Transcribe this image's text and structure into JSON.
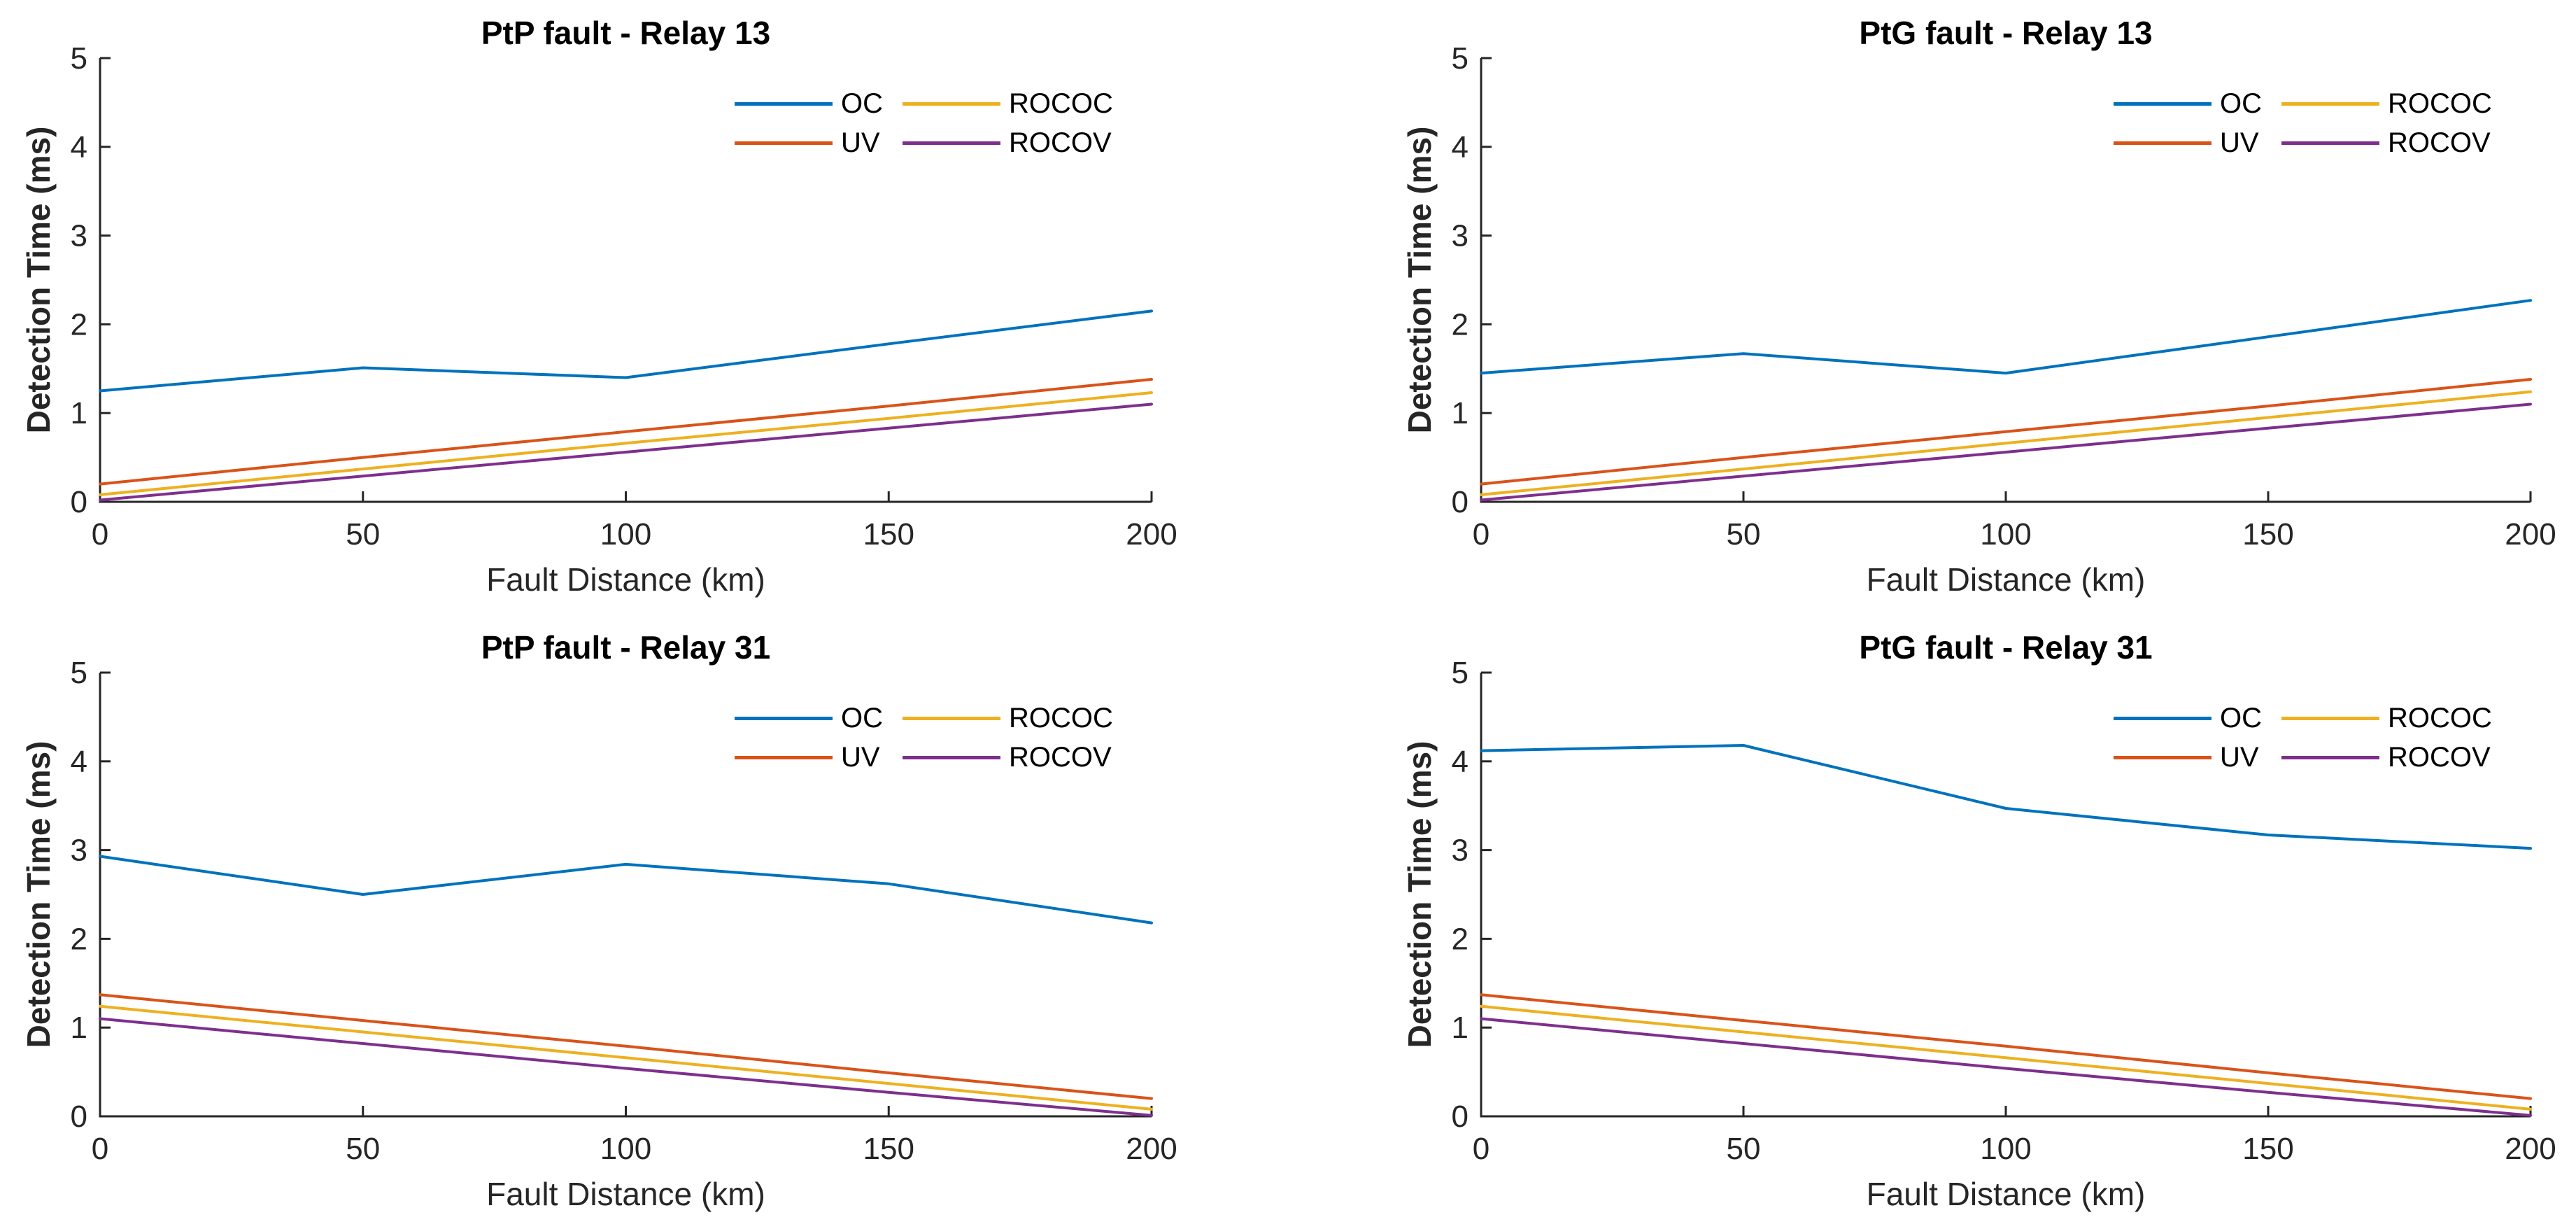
{
  "figure": {
    "background": "#ffffff",
    "axis_color": "#262626",
    "text_color": "#000000"
  },
  "chart_data": [
    {
      "type": "line",
      "title": "PtP fault - Relay 13",
      "xlabel": "Fault Distance (km)",
      "ylabel": "Detection Time (ms)",
      "x": [
        0,
        50,
        100,
        150,
        200
      ],
      "xlim": [
        0,
        200
      ],
      "ylim": [
        0,
        5
      ],
      "xticks": [
        0,
        50,
        100,
        150,
        200
      ],
      "yticks": [
        0,
        1,
        2,
        3,
        4,
        5
      ],
      "grid": false,
      "legend_position": "top-right",
      "series": [
        {
          "name": "OC",
          "color": "#0072BD",
          "values": [
            1.25,
            1.51,
            1.4,
            1.78,
            2.15
          ]
        },
        {
          "name": "UV",
          "color": "#D95319",
          "values": [
            0.2,
            0.5,
            0.79,
            1.08,
            1.38
          ]
        },
        {
          "name": "ROCOC",
          "color": "#EDB120",
          "values": [
            0.08,
            0.37,
            0.66,
            0.94,
            1.23
          ]
        },
        {
          "name": "ROCOV",
          "color": "#7E2F8E",
          "values": [
            0.02,
            0.29,
            0.56,
            0.83,
            1.1
          ]
        }
      ]
    },
    {
      "type": "line",
      "title": "PtG fault - Relay 13",
      "xlabel": "Fault Distance (km)",
      "ylabel": "Detection Time (ms)",
      "x": [
        0,
        50,
        100,
        150,
        200
      ],
      "xlim": [
        0,
        200
      ],
      "ylim": [
        0,
        5
      ],
      "xticks": [
        0,
        50,
        100,
        150,
        200
      ],
      "yticks": [
        0,
        1,
        2,
        3,
        4,
        5
      ],
      "grid": false,
      "legend_position": "top-right",
      "series": [
        {
          "name": "OC",
          "color": "#0072BD",
          "values": [
            1.45,
            1.67,
            1.45,
            1.86,
            2.27
          ]
        },
        {
          "name": "UV",
          "color": "#D95319",
          "values": [
            0.2,
            0.5,
            0.79,
            1.08,
            1.38
          ]
        },
        {
          "name": "ROCOC",
          "color": "#EDB120",
          "values": [
            0.08,
            0.37,
            0.66,
            0.95,
            1.24
          ]
        },
        {
          "name": "ROCOV",
          "color": "#7E2F8E",
          "values": [
            0.02,
            0.29,
            0.56,
            0.83,
            1.1
          ]
        }
      ]
    },
    {
      "type": "line",
      "title": "PtP fault - Relay 31",
      "xlabel": "Fault Distance (km)",
      "ylabel": "Detection Time (ms)",
      "x": [
        0,
        50,
        100,
        150,
        200
      ],
      "xlim": [
        0,
        200
      ],
      "ylim": [
        0,
        5
      ],
      "xticks": [
        0,
        50,
        100,
        150,
        200
      ],
      "yticks": [
        0,
        1,
        2,
        3,
        4,
        5
      ],
      "grid": false,
      "legend_position": "top-right",
      "series": [
        {
          "name": "OC",
          "color": "#0072BD",
          "values": [
            2.93,
            2.5,
            2.84,
            2.62,
            2.18
          ]
        },
        {
          "name": "UV",
          "color": "#D95319",
          "values": [
            1.37,
            1.08,
            0.79,
            0.49,
            0.2
          ]
        },
        {
          "name": "ROCOC",
          "color": "#EDB120",
          "values": [
            1.24,
            0.95,
            0.66,
            0.37,
            0.08
          ]
        },
        {
          "name": "ROCOV",
          "color": "#7E2F8E",
          "values": [
            1.1,
            0.82,
            0.54,
            0.27,
            0.01
          ]
        }
      ]
    },
    {
      "type": "line",
      "title": "PtG fault - Relay 31",
      "xlabel": "Fault Distance (km)",
      "ylabel": "Detection Time (ms)",
      "x": [
        0,
        50,
        100,
        150,
        200
      ],
      "xlim": [
        0,
        200
      ],
      "ylim": [
        0,
        5
      ],
      "xticks": [
        0,
        50,
        100,
        150,
        200
      ],
      "yticks": [
        0,
        1,
        2,
        3,
        4,
        5
      ],
      "grid": false,
      "legend_position": "top-right",
      "series": [
        {
          "name": "OC",
          "color": "#0072BD",
          "values": [
            4.12,
            4.18,
            3.47,
            3.17,
            3.02
          ]
        },
        {
          "name": "UV",
          "color": "#D95319",
          "values": [
            1.37,
            1.08,
            0.79,
            0.49,
            0.2
          ]
        },
        {
          "name": "ROCOC",
          "color": "#EDB120",
          "values": [
            1.24,
            0.95,
            0.66,
            0.37,
            0.08
          ]
        },
        {
          "name": "ROCOV",
          "color": "#7E2F8E",
          "values": [
            1.1,
            0.82,
            0.54,
            0.27,
            0.01
          ]
        }
      ]
    }
  ]
}
